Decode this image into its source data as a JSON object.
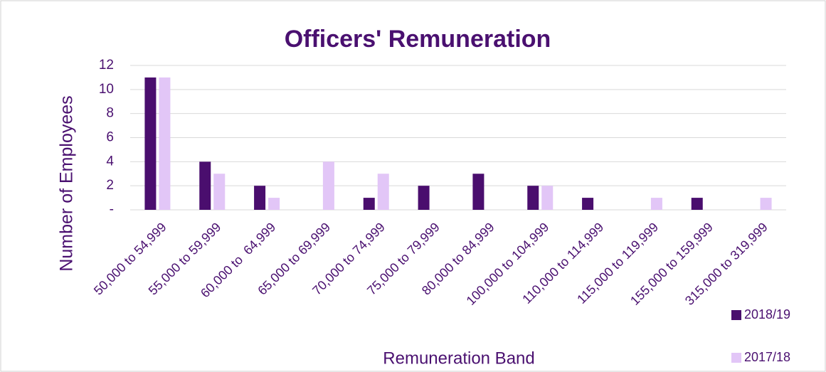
{
  "chart_data": {
    "type": "bar",
    "title": "Officers' Remuneration",
    "x_label": "Remuneration Band",
    "y_label": "Number of Employees",
    "categories": [
      "50,000 to 54,999",
      "55,000 to 59,999",
      "60,000 to  64,999",
      "65,000 to 69,999",
      "70,000 to 74,999",
      "75,000 to 79,999",
      "80,000 to 84,999",
      "100,000 to 104,999",
      "110,000 to 114,999",
      "115,000 to 119,999",
      "155,000 to 159,999",
      "315,000 to 319,999"
    ],
    "series": [
      {
        "name": "2018/19",
        "color": "#4a0e6e",
        "values": [
          11,
          4,
          2,
          0,
          1,
          2,
          3,
          2,
          1,
          0,
          1,
          0
        ]
      },
      {
        "name": "2017/18",
        "color": "#e2c6f7",
        "values": [
          11,
          3,
          1,
          4,
          3,
          0,
          0,
          2,
          0,
          1,
          0,
          1
        ]
      }
    ],
    "ylim": [
      0,
      12
    ],
    "yticks": [
      {
        "value": 0,
        "label": "-"
      },
      2,
      4,
      6,
      8,
      10,
      12
    ],
    "grid": true,
    "legend": "lower right"
  }
}
